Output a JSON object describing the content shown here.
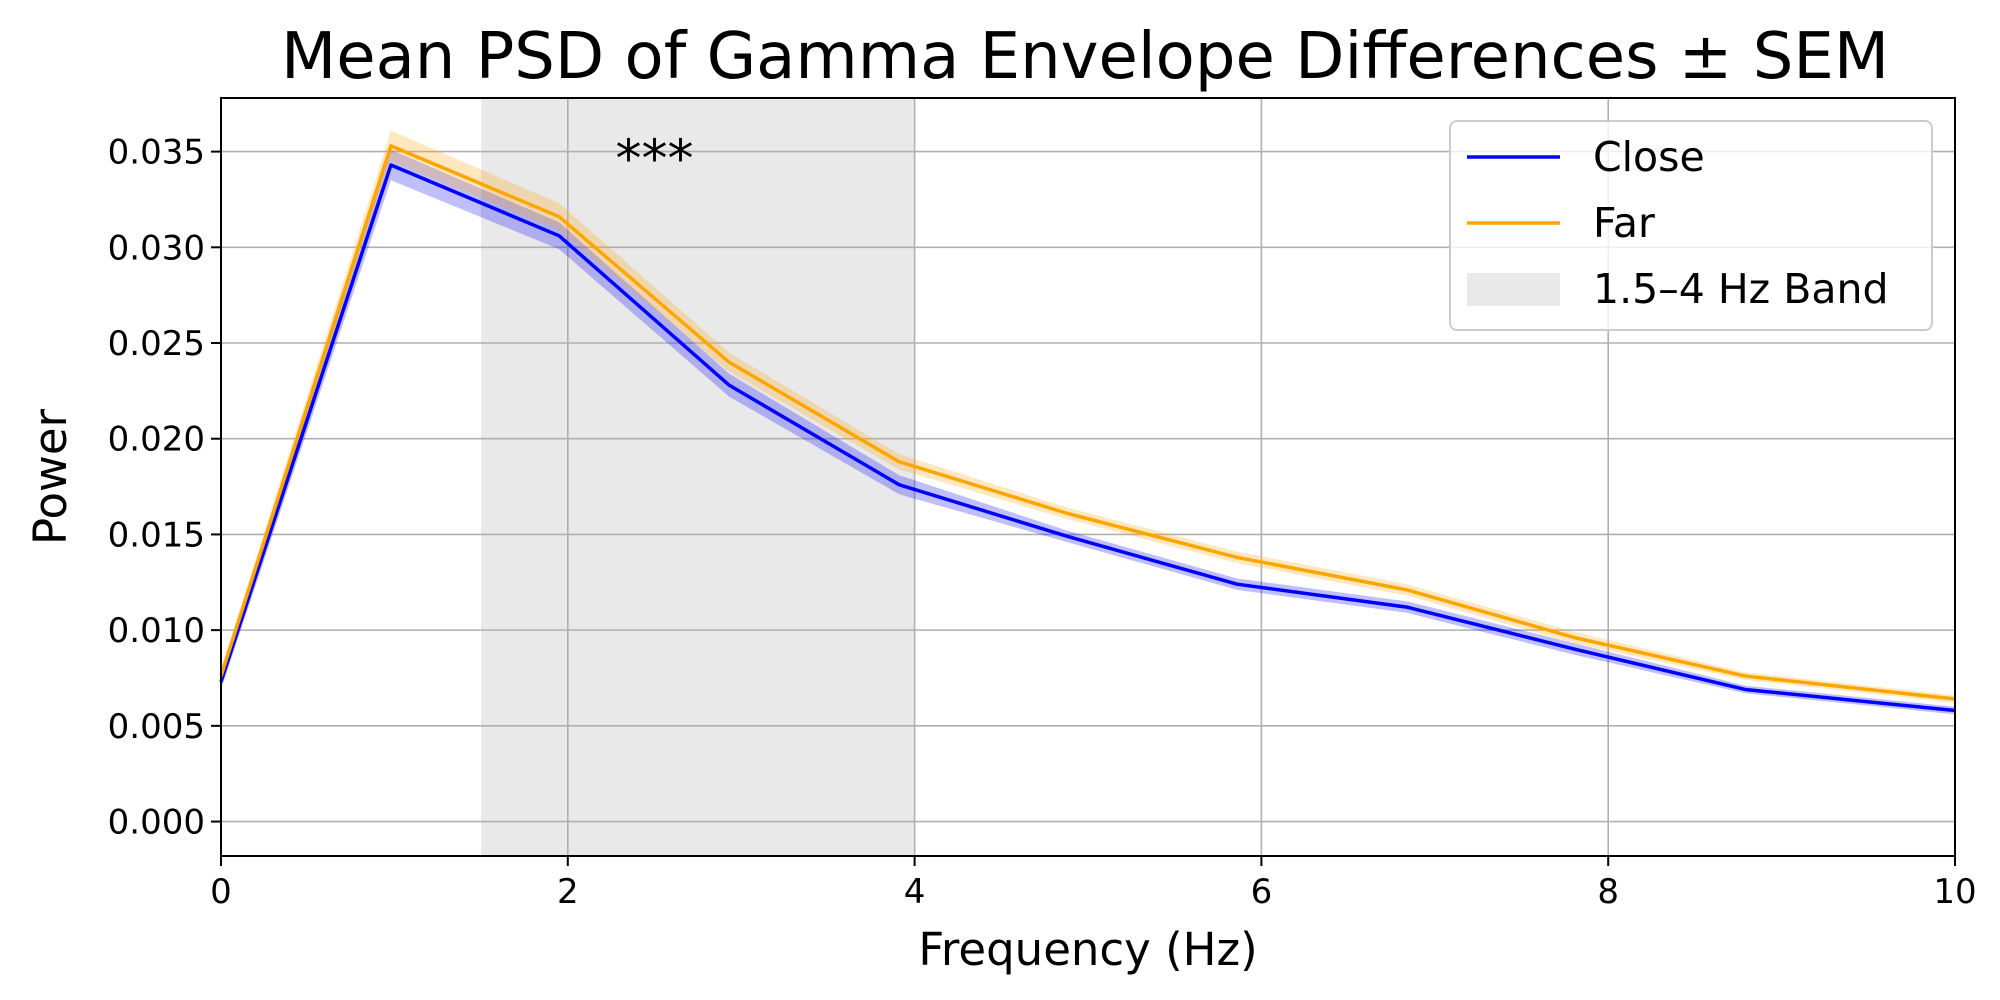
{
  "chart_data": {
    "type": "line",
    "title": "Mean PSD of Gamma Envelope Differences ± SEM",
    "xlabel": "Frequency (Hz)",
    "ylabel": "Power",
    "xlim": [
      0,
      10
    ],
    "ylim": [
      -0.0018,
      0.0378
    ],
    "xticks": [
      0,
      2,
      4,
      6,
      8,
      10
    ],
    "xtick_labels": [
      "0",
      "2",
      "4",
      "6",
      "8",
      "10"
    ],
    "yticks": [
      0.0,
      0.005,
      0.01,
      0.015,
      0.02,
      0.025,
      0.03,
      0.035
    ],
    "ytick_labels": [
      "0.000",
      "0.005",
      "0.010",
      "0.015",
      "0.020",
      "0.025",
      "0.030",
      "0.035"
    ],
    "grid": true,
    "legend_position": "top-right",
    "x": [
      0,
      0.98,
      1.95,
      2.93,
      3.91,
      4.88,
      5.86,
      6.84,
      7.81,
      8.79,
      10.0
    ],
    "series": [
      {
        "name": "Close",
        "color": "#0000ff",
        "values": [
          0.0073,
          0.0343,
          0.0306,
          0.0228,
          0.0176,
          0.0149,
          0.0124,
          0.0112,
          0.009,
          0.0069,
          0.0058
        ],
        "sem": [
          0.0004,
          0.0008,
          0.0007,
          0.0006,
          0.0005,
          0.0003,
          0.0003,
          0.0003,
          0.0003,
          0.0002,
          0.0002
        ]
      },
      {
        "name": "Far",
        "color": "#ffa500",
        "values": [
          0.0076,
          0.0353,
          0.0316,
          0.024,
          0.0188,
          0.0161,
          0.0138,
          0.0121,
          0.0096,
          0.0076,
          0.0064
        ],
        "sem": [
          0.0004,
          0.0008,
          0.0007,
          0.0005,
          0.0004,
          0.0003,
          0.0003,
          0.0003,
          0.0003,
          0.0002,
          0.0002
        ]
      }
    ],
    "band": {
      "label": "1.5–4 Hz Band",
      "start": 1.5,
      "end": 4.0,
      "color": "#d3d3d3"
    },
    "annotations": [
      {
        "text": "***",
        "x": 2.5,
        "y": 0.0337
      }
    ]
  }
}
